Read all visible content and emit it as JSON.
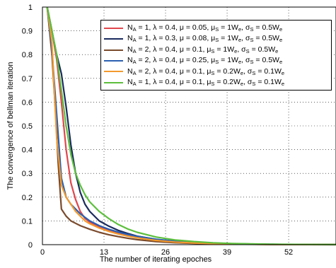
{
  "chart_data": {
    "type": "line",
    "xlabel": "The number of iterating epoches",
    "ylabel": "The convergence of bellman iteration",
    "xlim": [
      0,
      62
    ],
    "ylim": [
      0,
      1
    ],
    "xticks": [
      0,
      13,
      26,
      39,
      52
    ],
    "yticks": [
      0,
      0.1,
      0.2,
      0.3,
      0.4,
      0.5,
      0.6,
      0.7,
      0.8,
      0.9,
      1
    ],
    "ytick_labels": [
      "0",
      "0.1",
      "0.2",
      "0.3",
      "0.4",
      "0.5",
      "0.6",
      "0.7",
      "0.8",
      "0.9",
      "1"
    ],
    "grid": true,
    "legend_position": "top-right",
    "series": [
      {
        "name": "N_A = 1, λ = 0.4, μ = 0.05, μ_S = 1W_e, σ_S = 0.5W_e",
        "color": "#e0474c",
        "x": [
          1,
          2,
          3,
          4,
          5,
          6,
          7,
          8,
          9,
          10,
          12,
          14,
          16,
          18,
          20,
          24,
          28,
          32,
          36,
          40,
          48,
          56,
          62
        ],
        "y": [
          1,
          0.9,
          0.78,
          0.6,
          0.4,
          0.26,
          0.19,
          0.14,
          0.11,
          0.095,
          0.075,
          0.06,
          0.05,
          0.04,
          0.032,
          0.02,
          0.012,
          0.008,
          0.005,
          0.003,
          0.001,
          0.0005,
          0.0002
        ]
      },
      {
        "name": "N_A = 1, λ = 0.3, μ = 0.08, μ_S = 1W_e, σ_S = 0.5W_e",
        "color": "#1a2b5e",
        "x": [
          1,
          2,
          3,
          4,
          5,
          6,
          7,
          8,
          9,
          10,
          12,
          14,
          16,
          18,
          20,
          24,
          28,
          32,
          36,
          40,
          48,
          56,
          62
        ],
        "y": [
          1,
          0.9,
          0.8,
          0.72,
          0.58,
          0.42,
          0.3,
          0.22,
          0.17,
          0.14,
          0.1,
          0.078,
          0.06,
          0.047,
          0.036,
          0.022,
          0.014,
          0.009,
          0.006,
          0.004,
          0.0015,
          0.0006,
          0.0003
        ]
      },
      {
        "name": "N_A = 2, λ = 0.4, μ = 0.1, μ_S = 1W_e, σ_S = 0.5W_e",
        "color": "#7a4a2c",
        "x": [
          1,
          2,
          2.8,
          3.3,
          4,
          5,
          6,
          7,
          8,
          10,
          12,
          14,
          16,
          18,
          20,
          24,
          28,
          32,
          36,
          40,
          48,
          56,
          62
        ],
        "y": [
          1,
          0.8,
          0.55,
          0.35,
          0.15,
          0.12,
          0.1,
          0.09,
          0.08,
          0.065,
          0.052,
          0.042,
          0.034,
          0.027,
          0.021,
          0.013,
          0.008,
          0.005,
          0.003,
          0.002,
          0.0008,
          0.0003,
          0.0001
        ]
      },
      {
        "name": "N_A = 2, λ = 0.4, μ = 0.25, μ_S = 1W_e, σ_S = 0.5W_e",
        "color": "#2a5fb0",
        "x": [
          1,
          2,
          3,
          4,
          5,
          6,
          7,
          8,
          9,
          10,
          12,
          14,
          16,
          18,
          20,
          24,
          28,
          32,
          36,
          40,
          48,
          56,
          62
        ],
        "y": [
          1,
          0.82,
          0.55,
          0.28,
          0.2,
          0.17,
          0.15,
          0.13,
          0.115,
          0.1,
          0.08,
          0.065,
          0.053,
          0.043,
          0.035,
          0.023,
          0.015,
          0.01,
          0.006,
          0.004,
          0.0015,
          0.0006,
          0.0003
        ]
      },
      {
        "name": "N_A = 2, λ = 0.4, μ = 0.1, μ_S = 0.2W_e, σ_S = 0.1W_e",
        "color": "#f29a2e",
        "x": [
          1,
          2,
          3,
          4,
          5,
          6,
          7,
          8,
          9,
          10,
          12,
          14,
          16,
          18,
          20,
          24,
          28,
          32,
          36,
          40,
          48,
          56,
          62
        ],
        "y": [
          1,
          0.85,
          0.45,
          0.25,
          0.2,
          0.17,
          0.14,
          0.12,
          0.1,
          0.088,
          0.07,
          0.056,
          0.045,
          0.036,
          0.029,
          0.018,
          0.011,
          0.007,
          0.0045,
          0.003,
          0.0012,
          0.0005,
          0.0002
        ]
      },
      {
        "name": "N_A = 1, λ = 0.4, μ = 0.1, μ_S = 0.2W_e, σ_S = 0.1W_e",
        "color": "#5cbf3c",
        "x": [
          1,
          2,
          3,
          4,
          5,
          6,
          7,
          8,
          9,
          10,
          12,
          14,
          16,
          18,
          20,
          24,
          28,
          32,
          36,
          40,
          48,
          56,
          62
        ],
        "y": [
          1,
          0.9,
          0.8,
          0.65,
          0.5,
          0.38,
          0.3,
          0.25,
          0.21,
          0.18,
          0.14,
          0.11,
          0.085,
          0.066,
          0.052,
          0.032,
          0.02,
          0.013,
          0.008,
          0.005,
          0.002,
          0.0008,
          0.0003
        ]
      }
    ]
  },
  "legend": [
    {
      "parts": [
        [
          "N",
          ""
        ],
        [
          "A",
          "sub"
        ],
        [
          " = 1, λ = 0.4, μ = 0.05, μ",
          ""
        ],
        [
          "S",
          "sub"
        ],
        [
          " = 1W",
          ""
        ],
        [
          "e",
          "sub"
        ],
        [
          ", σ",
          ""
        ],
        [
          "S",
          "sub"
        ],
        [
          " = 0.5W",
          ""
        ],
        [
          "e",
          "sub"
        ]
      ]
    },
    {
      "parts": [
        [
          "N",
          ""
        ],
        [
          "A",
          "sub"
        ],
        [
          " = 1, λ = 0.3, μ = 0.08, μ",
          ""
        ],
        [
          "S",
          "sub"
        ],
        [
          " = 1W",
          ""
        ],
        [
          "e",
          "sub"
        ],
        [
          ", σ",
          ""
        ],
        [
          "S",
          "sub"
        ],
        [
          " = 0.5W",
          ""
        ],
        [
          "e",
          "sub"
        ]
      ]
    },
    {
      "parts": [
        [
          "N",
          ""
        ],
        [
          "A",
          "sub"
        ],
        [
          " = 2, λ = 0.4, μ = 0.1, μ",
          ""
        ],
        [
          "S",
          "sub"
        ],
        [
          " = 1W",
          ""
        ],
        [
          "e",
          "sub"
        ],
        [
          ", σ",
          ""
        ],
        [
          "S",
          "sub"
        ],
        [
          " = 0.5W",
          ""
        ],
        [
          "e",
          "sub"
        ]
      ]
    },
    {
      "parts": [
        [
          "N",
          ""
        ],
        [
          "A",
          "sub"
        ],
        [
          " = 2, λ = 0.4, μ = 0.25, μ",
          ""
        ],
        [
          "S",
          "sub"
        ],
        [
          " = 1W",
          ""
        ],
        [
          "e",
          "sub"
        ],
        [
          ", σ",
          ""
        ],
        [
          "S",
          "sub"
        ],
        [
          " = 0.5W",
          ""
        ],
        [
          "e",
          "sub"
        ]
      ]
    },
    {
      "parts": [
        [
          "N",
          ""
        ],
        [
          "A",
          "sub"
        ],
        [
          " = 2, λ = 0.4, μ = 0.1, μ",
          ""
        ],
        [
          "S",
          "sub"
        ],
        [
          " = 0.2W",
          ""
        ],
        [
          "e",
          "sub"
        ],
        [
          ", σ",
          ""
        ],
        [
          "S",
          "sub"
        ],
        [
          " = 0.1W",
          ""
        ],
        [
          "e",
          "sub"
        ]
      ]
    },
    {
      "parts": [
        [
          "N",
          ""
        ],
        [
          "A",
          "sub"
        ],
        [
          " = 1, λ = 0.4, μ = 0.1, μ",
          ""
        ],
        [
          "S",
          "sub"
        ],
        [
          " = 0.2W",
          ""
        ],
        [
          "e",
          "sub"
        ],
        [
          ", σ",
          ""
        ],
        [
          "S",
          "sub"
        ],
        [
          " = 0.1W",
          ""
        ],
        [
          "e",
          "sub"
        ]
      ]
    }
  ]
}
